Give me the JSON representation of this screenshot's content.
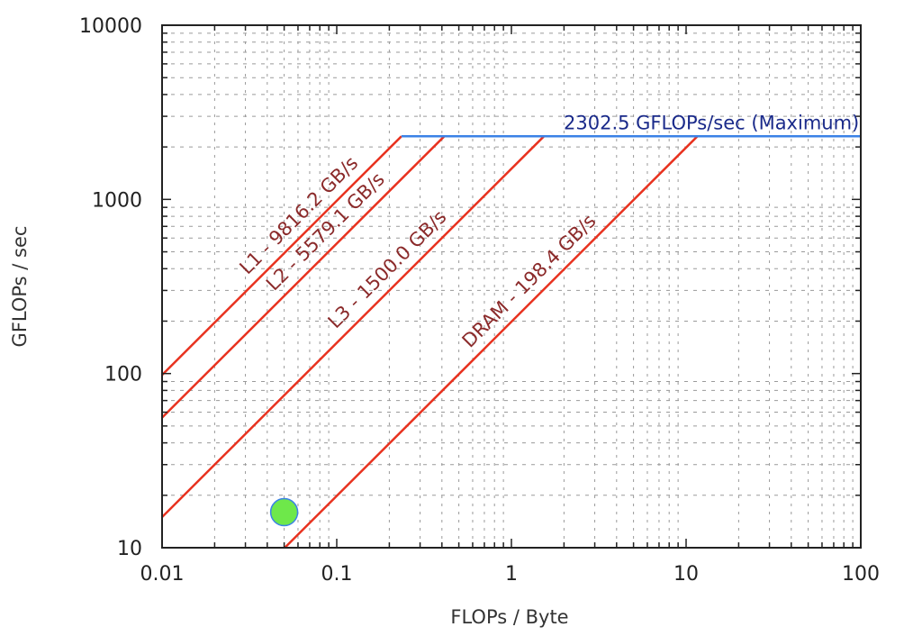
{
  "chart_data": {
    "type": "line",
    "title": "",
    "xlabel": "FLOPs / Byte",
    "ylabel": "GFLOPs / sec",
    "xscale": "log",
    "yscale": "log",
    "xlim": [
      0.01,
      100
    ],
    "ylim": [
      10,
      10000
    ],
    "x_ticks": [
      "0.01",
      "0.1",
      "1",
      "10",
      "100"
    ],
    "y_ticks": [
      "10",
      "100",
      "1000",
      "10000"
    ],
    "grid": true,
    "compute_roof": {
      "name": "Maximum",
      "value": 2302.5,
      "label": "2302.5 GFLOPs/sec (Maximum)",
      "color": "#3b82e6"
    },
    "bandwidth_roofs": [
      {
        "name": "L1",
        "bandwidth_gbs": 9816.2,
        "label": "L1 - 9816.2 GB/s",
        "color": "#e8321f"
      },
      {
        "name": "L2",
        "bandwidth_gbs": 5579.1,
        "label": "L2 - 5579.1 GB/s",
        "color": "#e8321f"
      },
      {
        "name": "L3",
        "bandwidth_gbs": 1500.0,
        "label": "L3 - 1500.0 GB/s",
        "color": "#e8321f"
      },
      {
        "name": "DRAM",
        "bandwidth_gbs": 198.4,
        "label": "DRAM - 198.4 GB/s",
        "color": "#e8321f"
      }
    ],
    "points": [
      {
        "x": 0.05,
        "y": 16,
        "color": "#6ee84a",
        "edge": "#3b82e6"
      }
    ],
    "legend": null
  }
}
